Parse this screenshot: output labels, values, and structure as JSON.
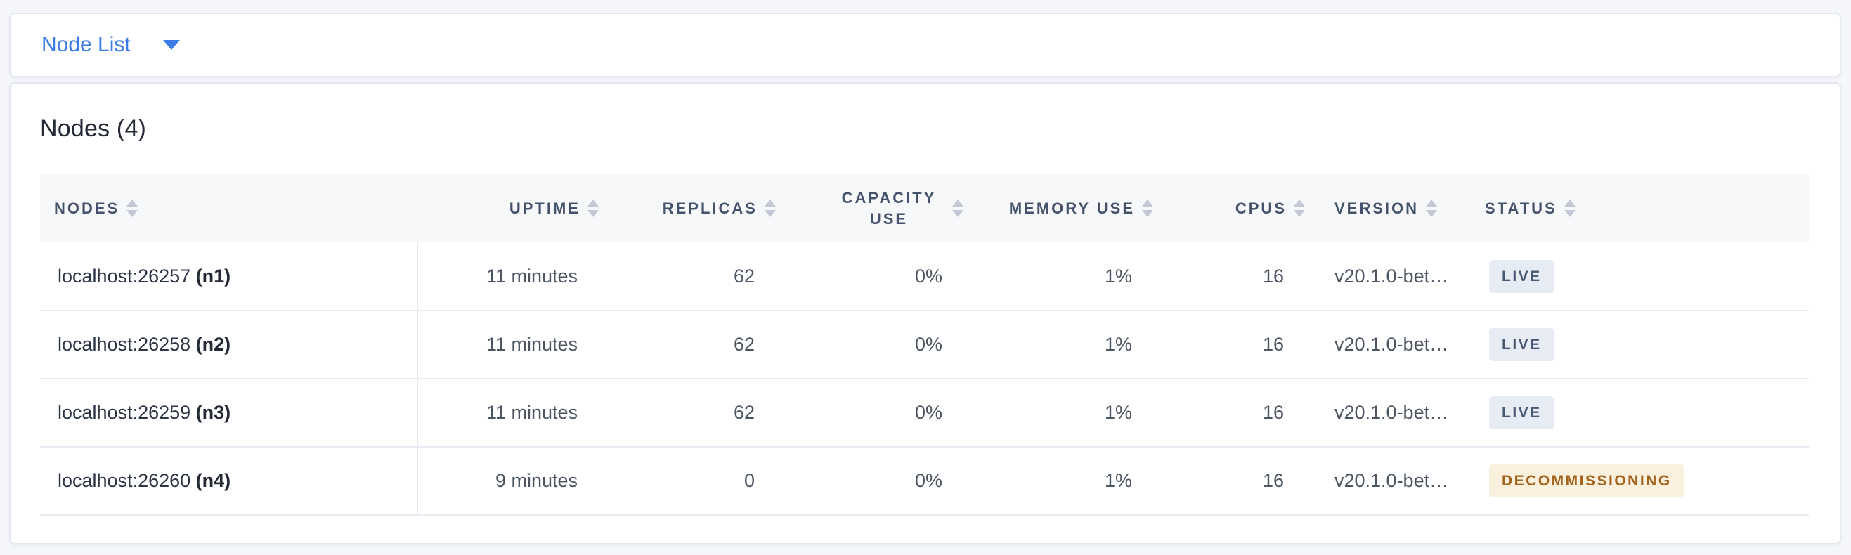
{
  "view_selector": {
    "label": "Node List"
  },
  "panel": {
    "title": "Nodes (4)"
  },
  "table": {
    "columns": [
      {
        "key": "nodes",
        "label": "NODES",
        "align": "left"
      },
      {
        "key": "uptime",
        "label": "UPTIME",
        "align": "right"
      },
      {
        "key": "replicas",
        "label": "REPLICAS",
        "align": "right"
      },
      {
        "key": "capacity",
        "label": "CAPACITY USE",
        "align": "right"
      },
      {
        "key": "memory",
        "label": "MEMORY USE",
        "align": "right"
      },
      {
        "key": "cpus",
        "label": "CPUS",
        "align": "right"
      },
      {
        "key": "version",
        "label": "VERSION",
        "align": "left"
      },
      {
        "key": "status",
        "label": "STATUS",
        "align": "left"
      }
    ],
    "rows": [
      {
        "nodes": {
          "address": "localhost:26257",
          "id": "(n1)"
        },
        "uptime": "11 minutes",
        "replicas": "62",
        "capacity": "0%",
        "memory": "1%",
        "cpus": "16",
        "version": "v20.1.0-bet…",
        "status": {
          "label": "LIVE",
          "type": "live"
        }
      },
      {
        "nodes": {
          "address": "localhost:26258",
          "id": "(n2)"
        },
        "uptime": "11 minutes",
        "replicas": "62",
        "capacity": "0%",
        "memory": "1%",
        "cpus": "16",
        "version": "v20.1.0-bet…",
        "status": {
          "label": "LIVE",
          "type": "live"
        }
      },
      {
        "nodes": {
          "address": "localhost:26259",
          "id": "(n3)"
        },
        "uptime": "11 minutes",
        "replicas": "62",
        "capacity": "0%",
        "memory": "1%",
        "cpus": "16",
        "version": "v20.1.0-bet…",
        "status": {
          "label": "LIVE",
          "type": "live"
        }
      },
      {
        "nodes": {
          "address": "localhost:26260",
          "id": "(n4)"
        },
        "uptime": "9 minutes",
        "replicas": "0",
        "capacity": "0%",
        "memory": "1%",
        "cpus": "16",
        "version": "v20.1.0-bet…",
        "status": {
          "label": "DECOMMISSIONING",
          "type": "decommissioning"
        }
      }
    ]
  },
  "colors": {
    "accent_blue": "#3b7ce8",
    "status_live_bg": "#e7ebf3",
    "status_live_text": "#475872",
    "status_decommissioning_bg": "#f9f0dd",
    "status_decommissioning_text": "#a4631d"
  }
}
